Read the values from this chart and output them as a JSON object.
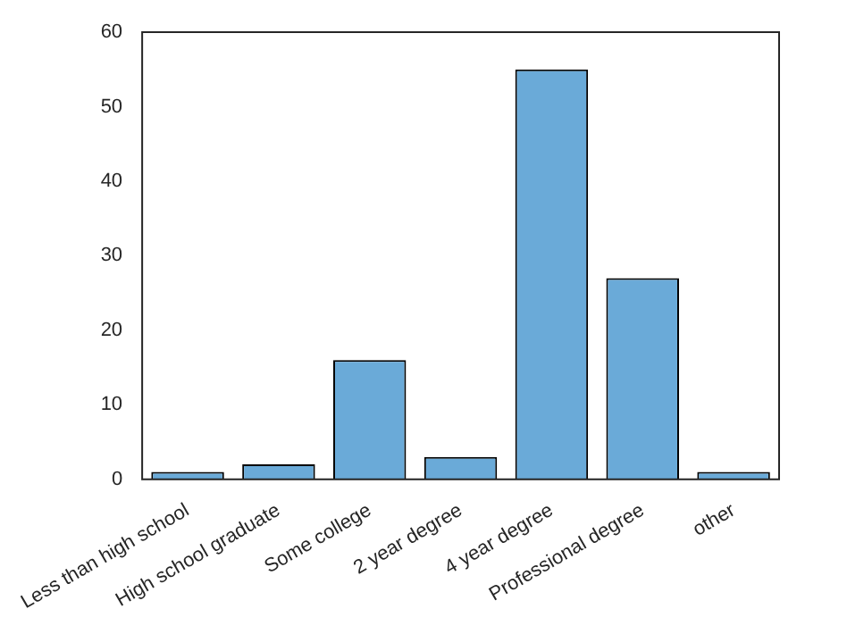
{
  "chart_data": {
    "type": "bar",
    "categories": [
      "Less than high school",
      "High school graduate",
      "Some college",
      "2 year degree",
      "4 year degree",
      "Professional degree",
      "other"
    ],
    "values": [
      1,
      2,
      16,
      3,
      55,
      27,
      1
    ],
    "color": "#6aaad8",
    "ylim": [
      0,
      60
    ],
    "yticks": [
      0,
      10,
      20,
      30,
      40,
      50,
      60
    ],
    "grid": false,
    "legend": false
  }
}
